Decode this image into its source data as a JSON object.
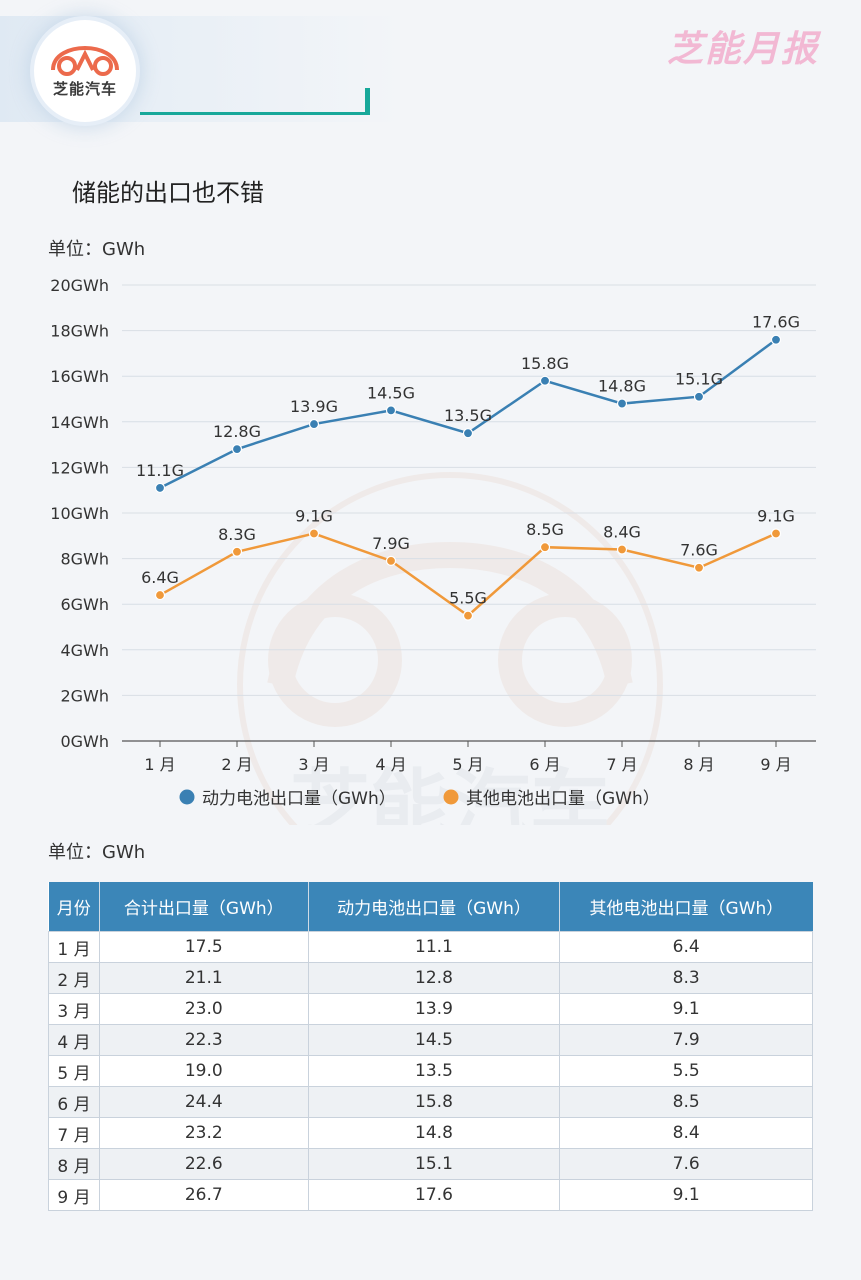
{
  "header": {
    "logo_text": "芝能汽车",
    "brand_title": "芝能月报",
    "watermark_text": "芝能汽车"
  },
  "page_title": "储能的出口也不错",
  "chart_unit_label": "单位：GWh",
  "table_unit_label": "单位：GWh",
  "colors": {
    "power_series": "#3a80b3",
    "other_series": "#f0993a",
    "table_header": "#3b86b8"
  },
  "chart_data": {
    "type": "line",
    "categories": [
      "1 月",
      "2 月",
      "3 月",
      "4 月",
      "5 月",
      "6 月",
      "7 月",
      "8 月",
      "9 月"
    ],
    "ylim": [
      0,
      20
    ],
    "yticks": [
      "0GWh",
      "2GWh",
      "4GWh",
      "6GWh",
      "8GWh",
      "10GWh",
      "12GWh",
      "14GWh",
      "16GWh",
      "18GWh",
      "20GWh"
    ],
    "grid": true,
    "legend_position": "bottom",
    "series": [
      {
        "name": "动力电池出口量（GWh）",
        "values": [
          11.1,
          12.8,
          13.9,
          14.5,
          13.5,
          15.8,
          14.8,
          15.1,
          17.6
        ],
        "labels": [
          "11.1G",
          "12.8G",
          "13.9G",
          "14.5G",
          "13.5G",
          "15.8G",
          "14.8G",
          "15.1G",
          "17.6G"
        ]
      },
      {
        "name": "其他电池出口量（GWh）",
        "values": [
          6.4,
          8.3,
          9.1,
          7.9,
          5.5,
          8.5,
          8.4,
          7.6,
          9.1
        ],
        "labels": [
          "6.4G",
          "8.3G",
          "9.1G",
          "7.9G",
          "5.5G",
          "8.5G",
          "8.4G",
          "7.6G",
          "9.1G"
        ]
      }
    ]
  },
  "table": {
    "headers": [
      "月份",
      "合计出口量（GWh）",
      "动力电池出口量（GWh）",
      "其他电池出口量（GWh）"
    ],
    "rows": [
      [
        "1 月",
        "17.5",
        "11.1",
        "6.4"
      ],
      [
        "2 月",
        "21.1",
        "12.8",
        "8.3"
      ],
      [
        "3 月",
        "23.0",
        "13.9",
        "9.1"
      ],
      [
        "4 月",
        "22.3",
        "14.5",
        "7.9"
      ],
      [
        "5 月",
        "19.0",
        "13.5",
        "5.5"
      ],
      [
        "6 月",
        "24.4",
        "15.8",
        "8.5"
      ],
      [
        "7 月",
        "23.2",
        "14.8",
        "8.4"
      ],
      [
        "8 月",
        "22.6",
        "15.1",
        "7.6"
      ],
      [
        "9 月",
        "26.7",
        "17.6",
        "9.1"
      ]
    ]
  }
}
